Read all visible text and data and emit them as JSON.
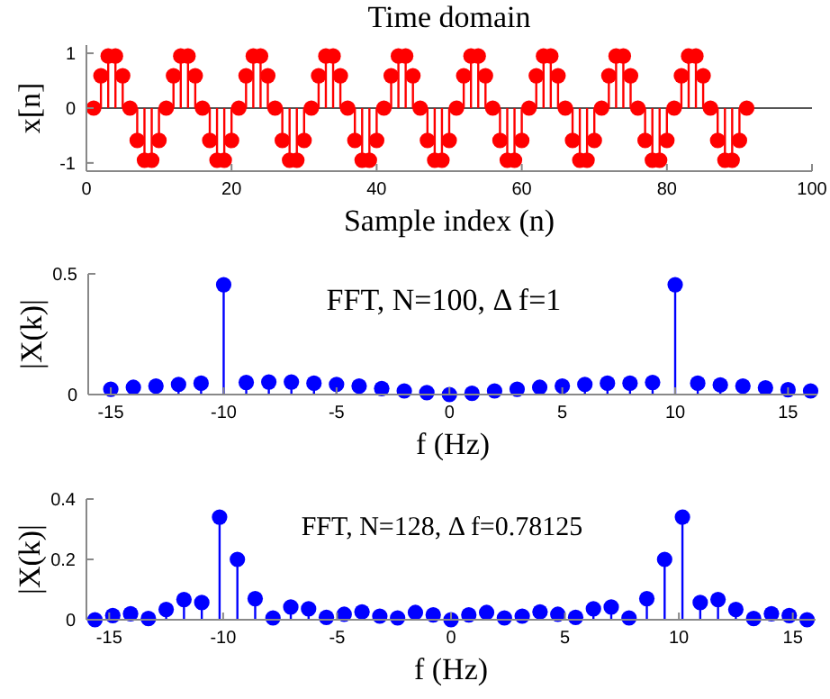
{
  "chart_data": [
    {
      "type": "lollipop",
      "title": "Time domain",
      "xlabel": "Sample index (n)",
      "ylabel": "x[n]",
      "xlim": [
        0,
        100
      ],
      "xticks": [
        0,
        20,
        40,
        60,
        80,
        100
      ],
      "ylim": [
        -1.15,
        1.15
      ],
      "yticks": [
        -1,
        0,
        1
      ],
      "marker": "circle",
      "series": [
        {
          "color": "#ff0000",
          "x": [
            1,
            2,
            3,
            4,
            5,
            6,
            7,
            8,
            9,
            10,
            11,
            12,
            13,
            14,
            15,
            16,
            17,
            18,
            19,
            20,
            21,
            22,
            23,
            24,
            25,
            26,
            27,
            28,
            29,
            30,
            31,
            32,
            33,
            34,
            35,
            36,
            37,
            38,
            39,
            40,
            41,
            42,
            43,
            44,
            45,
            46,
            47,
            48,
            49,
            50,
            51,
            52,
            53,
            54,
            55,
            56,
            57,
            58,
            59,
            60,
            61,
            62,
            63,
            64,
            65,
            66,
            67,
            68,
            69,
            70,
            71,
            72,
            73,
            74,
            75,
            76,
            77,
            78,
            79,
            80,
            81,
            82,
            83,
            84,
            85,
            86,
            87,
            88,
            89,
            90,
            91
          ],
          "values": [
            0,
            0.59,
            0.95,
            0.95,
            0.59,
            0,
            -0.59,
            -0.95,
            -0.95,
            -0.59,
            0,
            0.59,
            0.95,
            0.95,
            0.59,
            0,
            -0.59,
            -0.95,
            -0.95,
            -0.59,
            0,
            0.59,
            0.95,
            0.95,
            0.59,
            0,
            -0.59,
            -0.95,
            -0.95,
            -0.59,
            0,
            0.59,
            0.95,
            0.95,
            0.59,
            0,
            -0.59,
            -0.95,
            -0.95,
            -0.59,
            0,
            0.59,
            0.95,
            0.95,
            0.59,
            0,
            -0.59,
            -0.95,
            -0.95,
            -0.59,
            0,
            0.59,
            0.95,
            0.95,
            0.59,
            0,
            -0.59,
            -0.95,
            -0.95,
            -0.59,
            0,
            0.59,
            0.95,
            0.95,
            0.59,
            0,
            -0.59,
            -0.95,
            -0.95,
            -0.59,
            0,
            0.59,
            0.95,
            0.95,
            0.59,
            0,
            -0.59,
            -0.95,
            -0.95,
            -0.59,
            0,
            0.59,
            0.95,
            0.95,
            0.59,
            0,
            -0.59,
            -0.95,
            -0.95,
            -0.59,
            0
          ]
        }
      ]
    },
    {
      "type": "lollipop",
      "xlabel": "f (Hz)",
      "ylabel": "|X(k)|",
      "annotations": [
        "FFT, N=100, Δ f=1"
      ],
      "xlim": [
        -16,
        16.3
      ],
      "xticks": [
        -15,
        -10,
        -5,
        0,
        5,
        10,
        15
      ],
      "ylim": [
        0,
        0.5
      ],
      "yticks": [
        0,
        0.5
      ],
      "marker": "circle",
      "series": [
        {
          "color": "#0000ff",
          "x": [
            -15,
            -14,
            -13,
            -12,
            -11,
            -10,
            -9,
            -8,
            -7,
            -6,
            -5,
            -4,
            -3,
            -2,
            -1,
            0,
            1,
            2,
            3,
            4,
            5,
            6,
            7,
            8,
            9,
            10,
            11,
            12,
            13,
            14,
            15,
            16
          ],
          "values": [
            0.022,
            0.03,
            0.035,
            0.042,
            0.047,
            0.455,
            0.05,
            0.052,
            0.052,
            0.047,
            0.042,
            0.035,
            0.025,
            0.015,
            0.008,
            0,
            0.005,
            0.015,
            0.022,
            0.03,
            0.035,
            0.042,
            0.047,
            0.047,
            0.05,
            0.455,
            0.047,
            0.04,
            0.035,
            0.028,
            0.02,
            0.015
          ]
        }
      ]
    },
    {
      "type": "lollipop",
      "xlabel": "f (Hz)",
      "ylabel": "|X(k)|",
      "annotations": [
        "FFT, N=128, Δ f=0.78125"
      ],
      "xlim": [
        -16,
        16
      ],
      "xticks": [
        -15,
        -10,
        -5,
        0,
        5,
        10,
        15
      ],
      "ylim": [
        0,
        0.4
      ],
      "yticks": [
        0,
        0.2,
        0.4
      ],
      "marker": "circle",
      "series": [
        {
          "color": "#0000ff",
          "x": [
            -15.625,
            -14.84375,
            -14.0625,
            -13.28125,
            -12.5,
            -11.71875,
            -10.9375,
            -10.15625,
            -9.375,
            -8.59375,
            -7.8125,
            -7.03125,
            -6.25,
            -5.46875,
            -4.6875,
            -3.90625,
            -3.125,
            -2.34375,
            -1.5625,
            -0.78125,
            0,
            0.78125,
            1.5625,
            2.34375,
            3.125,
            3.90625,
            4.6875,
            5.46875,
            6.25,
            7.03125,
            7.8125,
            8.59375,
            9.375,
            10.15625,
            10.9375,
            11.71875,
            12.5,
            13.28125,
            14.0625,
            14.84375,
            15.625
          ],
          "values": [
            0,
            0.014,
            0.02,
            0.004,
            0.034,
            0.067,
            0.057,
            0.34,
            0.2,
            0.07,
            0.006,
            0.042,
            0.036,
            0.008,
            0.018,
            0.026,
            0.012,
            0.006,
            0.024,
            0.016,
            0,
            0.016,
            0.024,
            0.006,
            0.012,
            0.026,
            0.018,
            0.008,
            0.036,
            0.042,
            0.006,
            0.07,
            0.2,
            0.34,
            0.057,
            0.067,
            0.034,
            0.004,
            0.02,
            0.014,
            0
          ]
        }
      ]
    }
  ]
}
